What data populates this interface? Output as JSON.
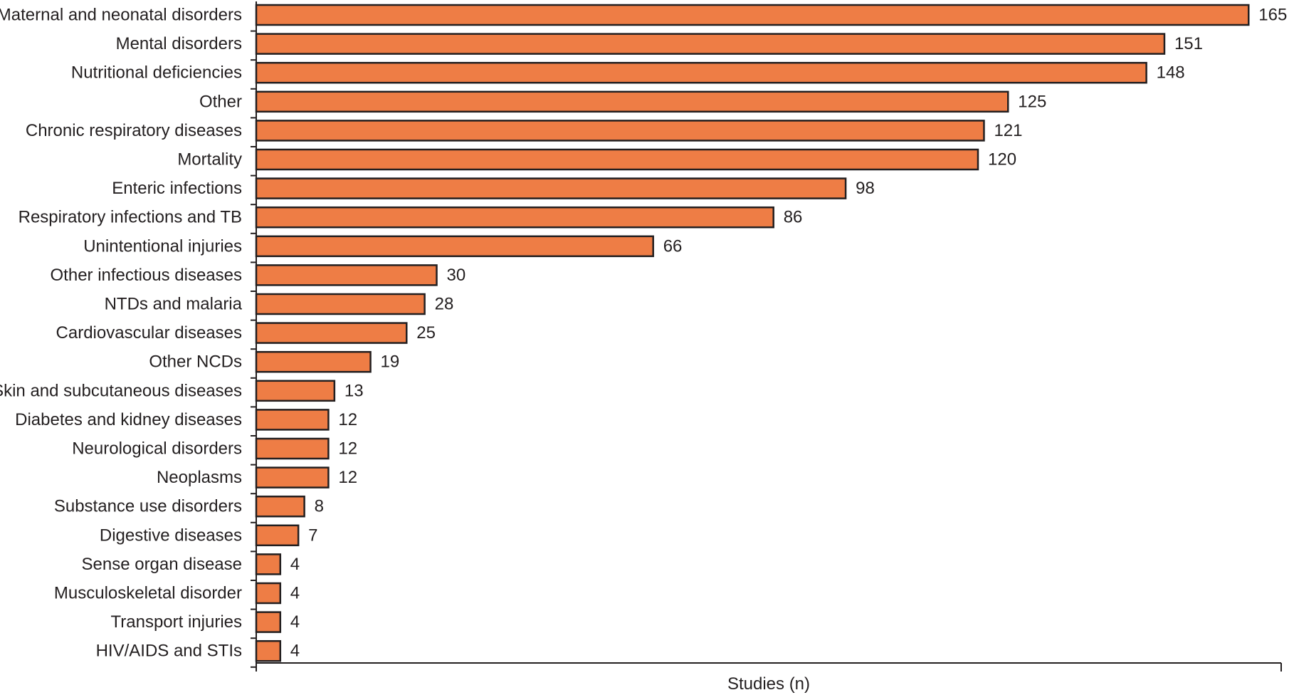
{
  "chart_data": {
    "type": "bar",
    "orientation": "horizontal",
    "categories": [
      "Maternal and neonatal disorders",
      "Mental disorders",
      "Nutritional deficiencies",
      "Other",
      "Chronic respiratory diseases",
      "Mortality",
      "Enteric infections",
      "Respiratory infections and TB",
      "Unintentional injuries",
      "Other infectious diseases",
      "NTDs and malaria",
      "Cardiovascular diseases",
      "Other NCDs",
      "Skin and subcutaneous diseases",
      "Diabetes and kidney diseases",
      "Neurological disorders",
      "Neoplasms",
      "Substance use disorders",
      "Digestive diseases",
      "Sense organ disease",
      "Musculoskeletal disorder",
      "Transport injuries",
      "HIV/AIDS and STIs"
    ],
    "values": [
      165,
      151,
      148,
      125,
      121,
      120,
      98,
      86,
      66,
      30,
      28,
      25,
      19,
      13,
      12,
      12,
      12,
      8,
      7,
      4,
      4,
      4,
      4
    ],
    "xlabel": "Studies (n)",
    "ylabel": "",
    "xlim": [
      0,
      170
    ],
    "grid": false,
    "legend": "none",
    "colors": {
      "bar_fill": "#ee7d45",
      "bar_stroke": "#231f20",
      "axis": "#231f20",
      "text": "#231f20"
    }
  }
}
